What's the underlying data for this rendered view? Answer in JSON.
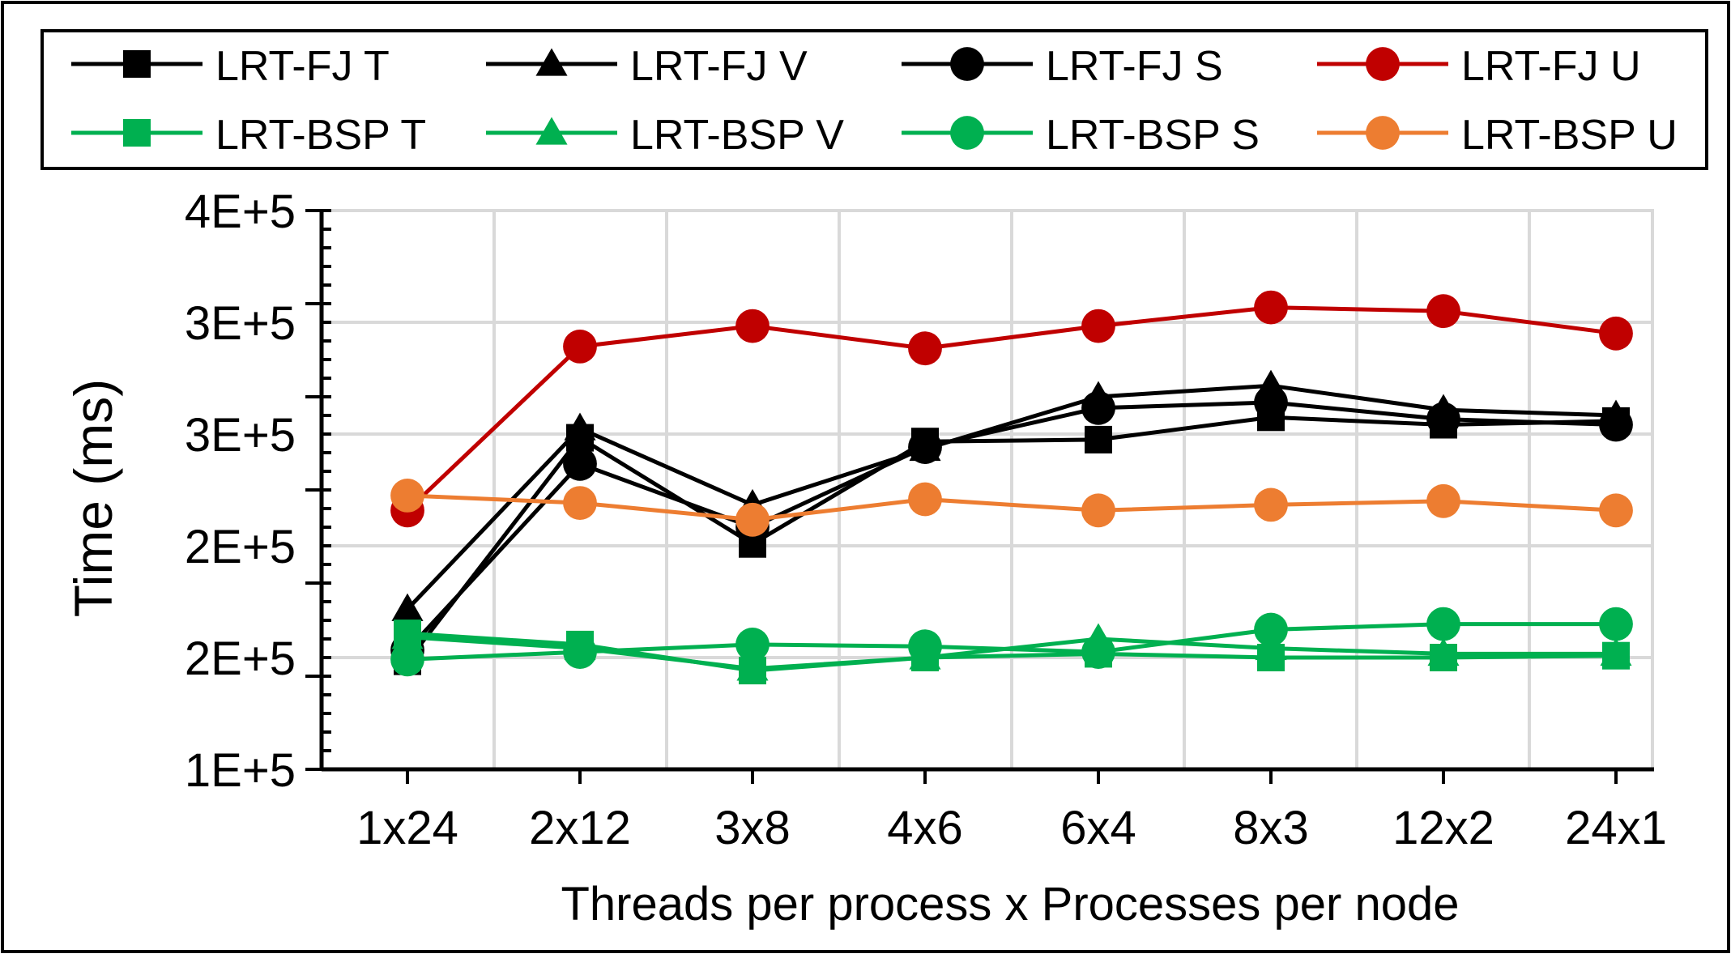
{
  "chart_data": {
    "type": "line",
    "title": "",
    "xlabel": "Threads per process x Processes per node",
    "ylabel": "Time (ms)",
    "categories": [
      "1x24",
      "2x12",
      "3x8",
      "4x6",
      "6x4",
      "8x3",
      "12x2",
      "24x1"
    ],
    "y_ticks": [
      "1E+5",
      "2E+5",
      "2E+5",
      "3E+5",
      "3E+5",
      "4E+5"
    ],
    "ylim": [
      100000,
      400000
    ],
    "grid": true,
    "legend_position": "top",
    "series": [
      {
        "name": "LRT-FJ T",
        "color": "#000000",
        "marker": "square",
        "values": [
          158000,
          278000,
          221000,
          276000,
          277000,
          289000,
          285000,
          287000
        ]
      },
      {
        "name": "LRT-FJ V",
        "color": "#000000",
        "marker": "triangle",
        "values": [
          186000,
          283000,
          242000,
          272000,
          300000,
          306000,
          293000,
          290000
        ]
      },
      {
        "name": "LRT-FJ S",
        "color": "#000000",
        "marker": "circle",
        "values": [
          164000,
          264000,
          230000,
          273000,
          294000,
          297000,
          288000,
          285000
        ]
      },
      {
        "name": "LRT-FJ U",
        "color": "#c00000",
        "marker": "circle",
        "values": [
          239000,
          327000,
          338000,
          326000,
          338000,
          348000,
          346000,
          334000
        ]
      },
      {
        "name": "LRT-BSP T",
        "color": "#00b050",
        "marker": "square",
        "values": [
          173000,
          167000,
          153000,
          160000,
          162000,
          160000,
          160000,
          161000
        ]
      },
      {
        "name": "LRT-BSP V",
        "color": "#00b050",
        "marker": "triangle",
        "values": [
          171000,
          165000,
          154000,
          160000,
          170000,
          165000,
          162000,
          162000
        ]
      },
      {
        "name": "LRT-BSP S",
        "color": "#00b050",
        "marker": "circle",
        "values": [
          159000,
          163000,
          167000,
          166000,
          163000,
          175000,
          178000,
          178000
        ]
      },
      {
        "name": "LRT-BSP U",
        "color": "#ed7d31",
        "marker": "circle",
        "values": [
          247000,
          243000,
          234000,
          245000,
          239000,
          242000,
          244000,
          239000
        ]
      }
    ]
  }
}
